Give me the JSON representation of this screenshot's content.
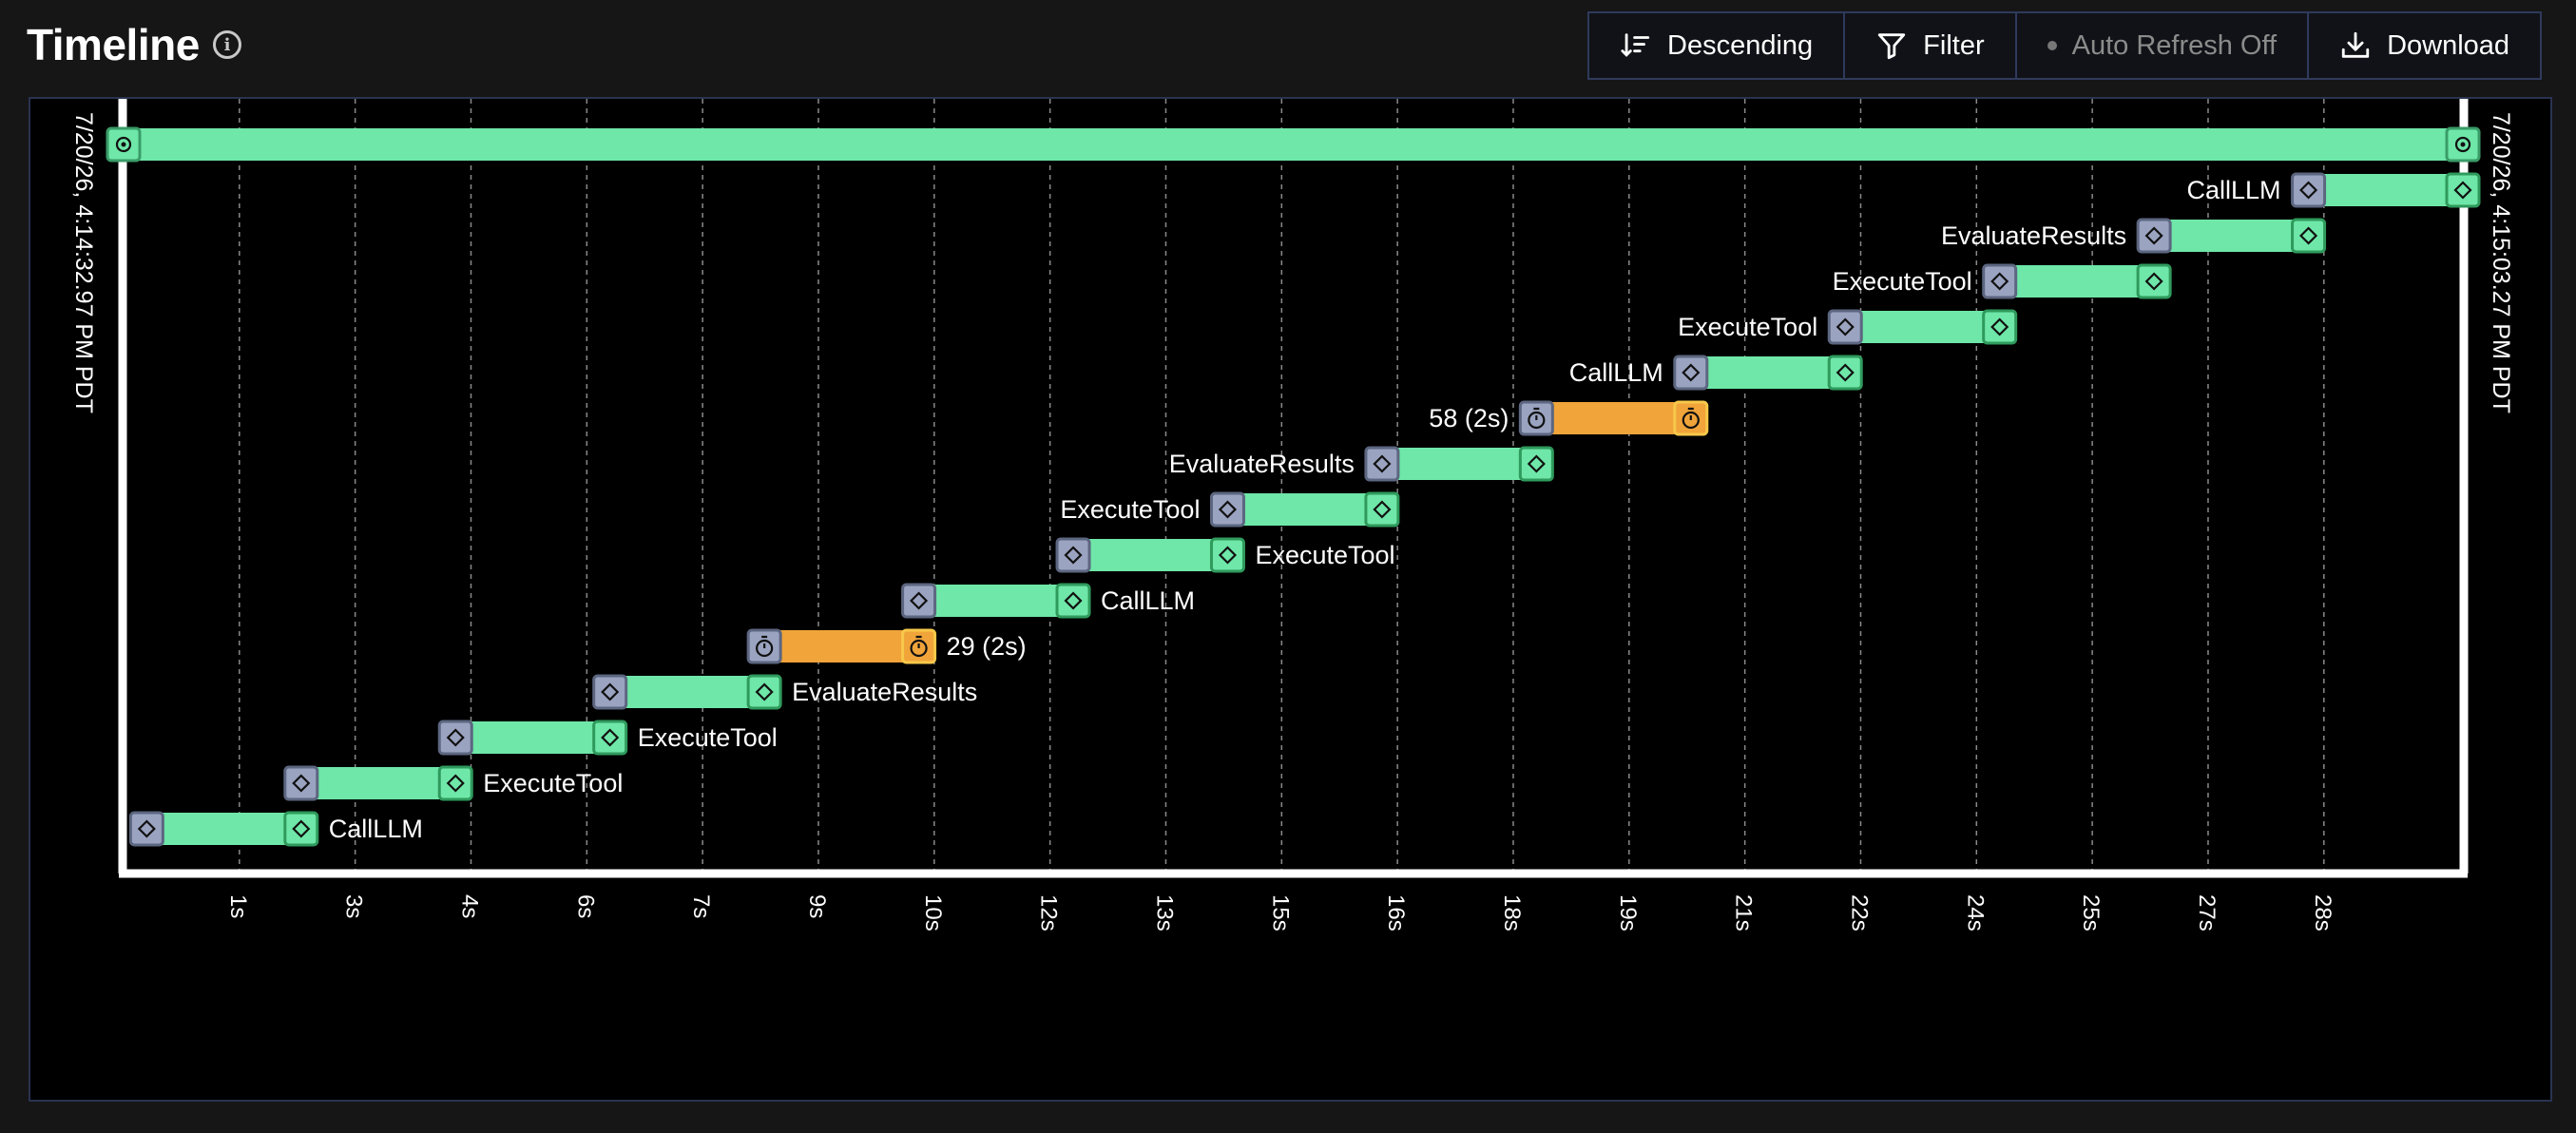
{
  "header": {
    "title": "Timeline",
    "info_icon": "info-icon"
  },
  "toolbar": {
    "sort_label": "Descending",
    "sort_icon": "sort-descending-icon",
    "filter_label": "Filter",
    "filter_icon": "filter-icon",
    "refresh_label": "Auto Refresh Off",
    "download_label": "Download",
    "download_icon": "download-icon"
  },
  "timeline": {
    "start_label": "7/20/26, 4:14:32.97 PM PDT",
    "end_label": "7/20/26, 4:15:03.27 PM PDT",
    "colors": {
      "span": "#6ee7a8",
      "wait": "#f0a43a",
      "marker": "#9aa3c0",
      "axis": "#ffffff",
      "grid": "#8a8a8a"
    }
  },
  "chart_data": {
    "type": "gantt",
    "x_unit": "seconds",
    "xlim": [
      0,
      30.3
    ],
    "ticks": [
      {
        "v": 1.5,
        "label": "1s"
      },
      {
        "v": 3.0,
        "label": "3s"
      },
      {
        "v": 4.5,
        "label": "4s"
      },
      {
        "v": 6.0,
        "label": "6s"
      },
      {
        "v": 7.5,
        "label": "7s"
      },
      {
        "v": 9.0,
        "label": "9s"
      },
      {
        "v": 10.5,
        "label": "10s"
      },
      {
        "v": 12.0,
        "label": "12s"
      },
      {
        "v": 13.5,
        "label": "13s"
      },
      {
        "v": 15.0,
        "label": "15s"
      },
      {
        "v": 16.5,
        "label": "16s"
      },
      {
        "v": 18.0,
        "label": "18s"
      },
      {
        "v": 19.5,
        "label": "19s"
      },
      {
        "v": 21.0,
        "label": "21s"
      },
      {
        "v": 22.5,
        "label": "22s"
      },
      {
        "v": 24.0,
        "label": "24s"
      },
      {
        "v": 25.5,
        "label": "25s"
      },
      {
        "v": 27.0,
        "label": "27s"
      },
      {
        "v": 28.5,
        "label": "28s"
      }
    ],
    "spans": [
      {
        "label": "",
        "start": 0.0,
        "end": 30.3,
        "kind": "run",
        "label_side": "none"
      },
      {
        "label": "CallLLM",
        "start": 28.3,
        "end": 30.3,
        "kind": "task",
        "label_side": "left"
      },
      {
        "label": "EvaluateResults",
        "start": 26.3,
        "end": 28.3,
        "kind": "task",
        "label_side": "left"
      },
      {
        "label": "ExecuteTool",
        "start": 24.3,
        "end": 26.3,
        "kind": "task",
        "label_side": "left"
      },
      {
        "label": "ExecuteTool",
        "start": 22.3,
        "end": 24.3,
        "kind": "task",
        "label_side": "left"
      },
      {
        "label": "CallLLM",
        "start": 20.3,
        "end": 22.3,
        "kind": "task",
        "label_side": "left"
      },
      {
        "label": "58 (2s)",
        "start": 18.3,
        "end": 20.3,
        "kind": "wait",
        "label_side": "left"
      },
      {
        "label": "EvaluateResults",
        "start": 16.3,
        "end": 18.3,
        "kind": "task",
        "label_side": "left"
      },
      {
        "label": "ExecuteTool",
        "start": 14.3,
        "end": 16.3,
        "kind": "task",
        "label_side": "left"
      },
      {
        "label": "ExecuteTool",
        "start": 12.3,
        "end": 14.3,
        "kind": "task",
        "label_side": "right"
      },
      {
        "label": "CallLLM",
        "start": 10.3,
        "end": 12.3,
        "kind": "task",
        "label_side": "right"
      },
      {
        "label": "29 (2s)",
        "start": 8.3,
        "end": 10.3,
        "kind": "wait",
        "label_side": "right"
      },
      {
        "label": "EvaluateResults",
        "start": 6.3,
        "end": 8.3,
        "kind": "task",
        "label_side": "right"
      },
      {
        "label": "ExecuteTool",
        "start": 4.3,
        "end": 6.3,
        "kind": "task",
        "label_side": "right"
      },
      {
        "label": "ExecuteTool",
        "start": 2.3,
        "end": 4.3,
        "kind": "task",
        "label_side": "right"
      },
      {
        "label": "CallLLM",
        "start": 0.3,
        "end": 2.3,
        "kind": "task",
        "label_side": "right"
      }
    ]
  }
}
